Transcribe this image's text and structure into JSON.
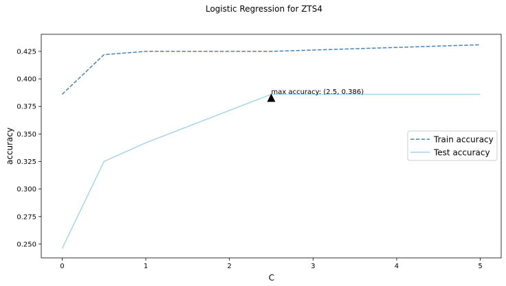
{
  "chart_data": {
    "type": "line",
    "title": "Logistic Regression for ZTS4",
    "xlabel": "C",
    "ylabel": "accuracy",
    "xlim": [
      -0.25,
      5.25
    ],
    "ylim": [
      0.2375,
      0.4405
    ],
    "x_ticks": [
      0,
      1,
      2,
      3,
      4,
      5
    ],
    "x_tick_labels": [
      "0",
      "1",
      "2",
      "3",
      "4",
      "5"
    ],
    "y_ticks": [
      0.25,
      0.275,
      0.3,
      0.325,
      0.35,
      0.375,
      0.4,
      0.425
    ],
    "y_tick_labels": [
      "0.250",
      "0.275",
      "0.300",
      "0.325",
      "0.350",
      "0.375",
      "0.400",
      "0.425"
    ],
    "grid": false,
    "legend_position": "center-right",
    "x": [
      0,
      0.5,
      1,
      2.5,
      5
    ],
    "series": [
      {
        "name": "Train accuracy",
        "values": [
          0.386,
          0.422,
          0.425,
          0.425,
          0.431
        ],
        "color": "#4682b4",
        "style": "dashed"
      },
      {
        "name": "Test accuracy",
        "values": [
          0.246,
          0.325,
          0.342,
          0.386,
          0.386
        ],
        "color": "#a6d4ea",
        "style": "solid"
      }
    ],
    "annotation": {
      "text": "max accuracy: (2.5, 0.386)",
      "x": 2.5,
      "y": 0.386,
      "marker": "triangle"
    }
  }
}
